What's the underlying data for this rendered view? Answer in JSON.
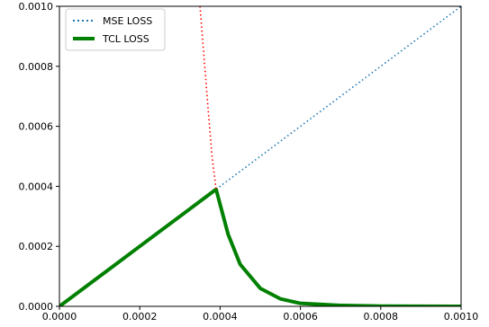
{
  "chart_data": {
    "type": "line",
    "title": "",
    "xlabel": "",
    "ylabel": "",
    "xlim": [
      0,
      0.001
    ],
    "ylim": [
      0,
      0.001
    ],
    "x_ticks": [
      "0.0000",
      "0.0002",
      "0.0004",
      "0.0006",
      "0.0008",
      "0.0010"
    ],
    "y_ticks": [
      "0.0000",
      "0.0002",
      "0.0004",
      "0.0006",
      "0.0008",
      "0.0010"
    ],
    "grid": false,
    "legend_position": "top-left",
    "series": [
      {
        "name": "MSE LOSS",
        "style": "dotted",
        "color": "#1f77b4",
        "x": [
          0.00039,
          0.0005,
          0.0006,
          0.0007,
          0.0008,
          0.0009,
          0.001
        ],
        "y": [
          0.00039,
          0.0005,
          0.0006,
          0.0007,
          0.0008,
          0.0009,
          0.001
        ]
      },
      {
        "name": "TCL LOSS",
        "style": "solid",
        "color": "#008000",
        "x": [
          0,
          0.0001,
          0.0002,
          0.0003,
          0.00039,
          0.00042,
          0.00045,
          0.0005,
          0.00055,
          0.0006,
          0.0007,
          0.0008,
          0.001
        ],
        "y": [
          0,
          0.0001,
          0.0002,
          0.0003,
          0.00039,
          0.00024,
          0.00014,
          6e-05,
          2.5e-05,
          1e-05,
          3e-06,
          8e-07,
          0
        ]
      },
      {
        "style": "dotted",
        "color": "#ff0000",
        "x": [
          0.00035,
          0.00036,
          0.00037,
          0.00038,
          0.00039
        ],
        "y": [
          0.001,
          0.00083,
          0.00066,
          0.0005,
          0.00039
        ]
      }
    ]
  }
}
